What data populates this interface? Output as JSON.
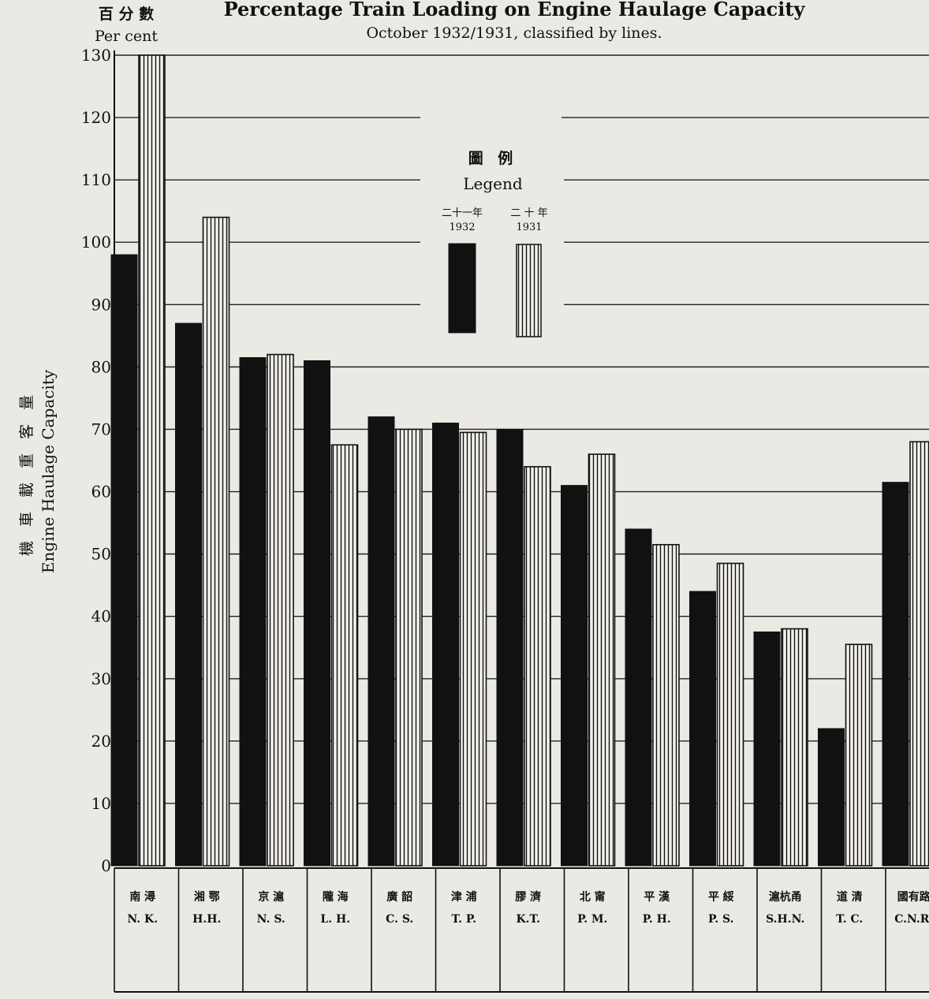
{
  "header": {
    "unit_cn": "百 分 數",
    "unit_en": "Per cent"
  },
  "chart_data": {
    "type": "bar",
    "title": "Percentage Train Loading on Engine Haulage Capacity",
    "subtitle": "October 1932/1931, classified by lines.",
    "ylabel_cn": "機 車 載 重 客 量",
    "ylabel": "Engine Haulage Capacity",
    "ylim": [
      0,
      130
    ],
    "yticks": [
      0,
      10,
      20,
      30,
      40,
      50,
      60,
      70,
      80,
      90,
      100,
      110,
      120,
      130
    ],
    "grid": true,
    "legend": {
      "title_cn": "圖 例",
      "title_en": "Legend",
      "placement": "top-center",
      "entries": [
        {
          "label_cn": "二十一年",
          "label_en": "1932",
          "fill": "solid"
        },
        {
          "label_cn": "二 十 年",
          "label_en": "1931",
          "fill": "vertical-hatch"
        }
      ]
    },
    "categories": [
      {
        "cn": "南 潯",
        "en": "N. K."
      },
      {
        "cn": "湘 鄂",
        "en": "H.H."
      },
      {
        "cn": "京 滬",
        "en": "N. S."
      },
      {
        "cn": "隴 海",
        "en": "L. H."
      },
      {
        "cn": "廣 韶",
        "en": "C. S."
      },
      {
        "cn": "津 浦",
        "en": "T. P."
      },
      {
        "cn": "膠 濟",
        "en": "K.T."
      },
      {
        "cn": "北 甯",
        "en": "P. M."
      },
      {
        "cn": "平 漢",
        "en": "P. H."
      },
      {
        "cn": "平 綏",
        "en": "P. S."
      },
      {
        "cn": "滬杭甬",
        "en": "S.H.N."
      },
      {
        "cn": "道 清",
        "en": "T. C."
      },
      {
        "cn": "國有路",
        "en": "C.N.R."
      }
    ],
    "series": [
      {
        "name": "1932",
        "values": [
          98,
          87,
          81.5,
          81,
          72,
          71,
          70,
          61,
          54,
          44,
          37.5,
          22,
          61.5
        ]
      },
      {
        "name": "1931",
        "values": [
          130,
          104,
          82,
          67.5,
          70,
          69.5,
          64,
          66,
          51.5,
          48.5,
          38,
          35.5,
          68
        ]
      }
    ]
  },
  "colors": {
    "paper": "#ebe9e4",
    "ink": "#111111",
    "hatch_bg": "#f3f1ec"
  }
}
